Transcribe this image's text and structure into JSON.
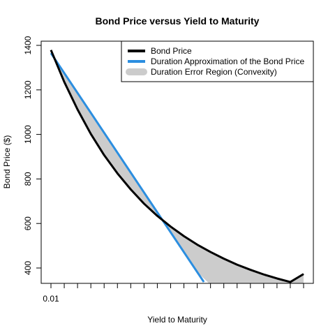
{
  "chart_data": {
    "type": "line",
    "title": "Bond Price versus Yield to Maturity",
    "xlabel": "Yield to Maturity",
    "ylabel": "Bond Price ($)",
    "xlim": [
      0.01,
      0.2
    ],
    "ylim": [
      340,
      1400
    ],
    "x_ticks": [
      0.01,
      0.02,
      0.03,
      0.04,
      0.05,
      0.06,
      0.07,
      0.08,
      0.09,
      0.1,
      0.11,
      0.12,
      0.13,
      0.14,
      0.15,
      0.16,
      0.17,
      0.18,
      0.19,
      0.2
    ],
    "x_tick_labels": [
      {
        "value": 0.01,
        "label": "0.01"
      }
    ],
    "y_ticks": [
      400,
      600,
      800,
      1000,
      1200,
      1400
    ],
    "legend": {
      "position": "top-right",
      "entries": [
        {
          "label": "Bond Price",
          "color": "#000000",
          "kind": "line"
        },
        {
          "label": "Duration Approximation of the Bond Price",
          "color": "#2b8ee0",
          "kind": "line"
        },
        {
          "label": "Duration Error Region (Convexity)",
          "color": "#cccccc",
          "kind": "area"
        }
      ]
    },
    "series": [
      {
        "name": "Bond Price",
        "color": "#000000",
        "x": [
          0.01,
          0.02,
          0.03,
          0.04,
          0.05,
          0.06,
          0.07,
          0.08,
          0.09,
          0.1,
          0.11,
          0.12,
          0.13,
          0.14,
          0.15,
          0.16,
          0.17,
          0.18,
          0.19,
          0.2
        ],
        "y": [
          1379,
          1236,
          1112,
          1002,
          907,
          825,
          753,
          689,
          634,
          586,
          543,
          505,
          472,
          442,
          415,
          392,
          371,
          353,
          337,
          373
        ]
      },
      {
        "name": "Duration Approximation of the Bond Price",
        "color": "#2b8ee0",
        "x": [
          0.01,
          0.125
        ],
        "y": [
          1365,
          337
        ]
      }
    ],
    "error_region": {
      "name": "Duration Error Region (Convexity)",
      "color": "#cccccc"
    }
  }
}
